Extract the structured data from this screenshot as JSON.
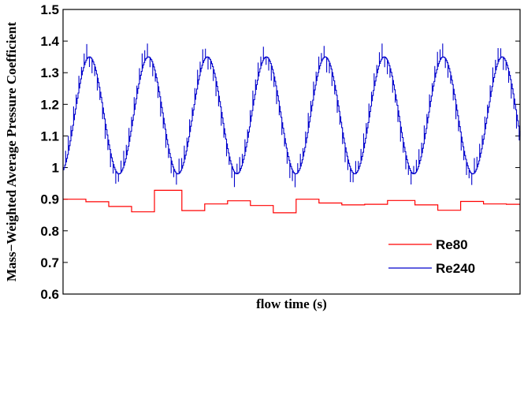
{
  "chart_data": {
    "type": "line",
    "title": "",
    "xlabel": "flow time (s)",
    "ylabel": "Mass−Weighted Average Pressure Coefficient",
    "ylim": [
      0.6,
      1.5
    ],
    "yticks": [
      0.6,
      0.7,
      0.8,
      0.9,
      1,
      1.1,
      1.2,
      1.3,
      1.4,
      1.5
    ],
    "ytick_labels": [
      "0.6",
      "0.7",
      "0.8",
      "0.9",
      "1",
      "1.1",
      "1.2",
      "1.3",
      "1.4",
      "1.5"
    ],
    "xlim": [
      0,
      100
    ],
    "xticks_shown": false,
    "grid": false,
    "legend_position": "bottom-right",
    "series": [
      {
        "name": "Re80",
        "color": "#ff0000",
        "style": "step",
        "x": [
          0,
          5,
          10,
          15,
          20,
          26,
          31,
          36,
          41,
          46,
          51,
          56,
          61,
          66,
          71,
          77,
          82,
          87,
          92,
          97,
          100
        ],
        "values": [
          0.9,
          0.892,
          0.877,
          0.86,
          0.928,
          0.864,
          0.885,
          0.895,
          0.88,
          0.857,
          0.9,
          0.888,
          0.882,
          0.884,
          0.896,
          0.882,
          0.865,
          0.893,
          0.885,
          0.884,
          0.884
        ]
      },
      {
        "name": "Re240",
        "color": "#0000cc",
        "style": "oscillation",
        "x_start": 0,
        "x_end": 100,
        "cycles": 7.75,
        "phase_start": -1.2,
        "mean": 1.165,
        "amplitude": 0.185,
        "max": 1.36,
        "min": 0.98
      }
    ]
  }
}
